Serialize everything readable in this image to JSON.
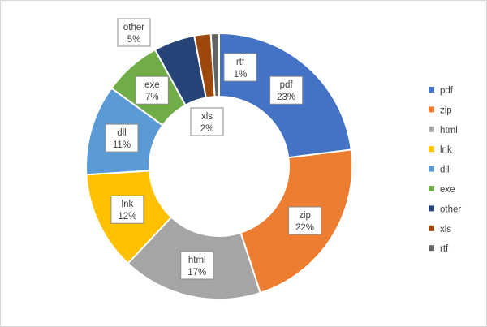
{
  "chart_data": {
    "type": "pie",
    "donut": true,
    "title": "",
    "legend_position": "right",
    "categories": [
      "pdf",
      "zip",
      "html",
      "lnk",
      "dll",
      "exe",
      "other",
      "xls",
      "rtf"
    ],
    "values": [
      23,
      22,
      17,
      12,
      11,
      7,
      5,
      2,
      1
    ],
    "value_labels": [
      "23%",
      "22%",
      "17%",
      "12%",
      "11%",
      "7%",
      "5%",
      "2%",
      "1%"
    ],
    "colors": [
      "#4472c4",
      "#ed7d31",
      "#a5a5a5",
      "#ffc000",
      "#5b9bd5",
      "#70ad47",
      "#264478",
      "#9e480e",
      "#636363"
    ]
  }
}
